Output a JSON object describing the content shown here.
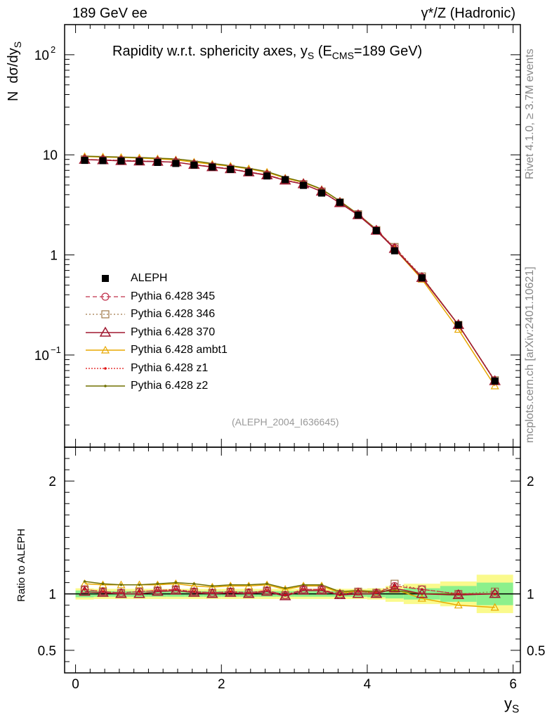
{
  "header": {
    "left": "189 GeV ee",
    "right": "γ*/Z (Hadronic)"
  },
  "title": {
    "prefix": "Rapidity w.r.t. sphericity axes, y",
    "sub1": "S",
    "mid": " (E",
    "sub2": "CMS",
    "suffix": "=189 GeV)"
  },
  "side_labels": {
    "rivet": "Rivet 4.1.0, ≥ 3.7M events",
    "mcplots": "mcplots.cern.ch [arXiv:2401.10621]"
  },
  "analysis_id": "(ALEPH_2004_I636645)",
  "colors": {
    "ALEPH": "#000000",
    "p345": "#c0304a",
    "p346": "#a07848",
    "p370": "#a01830",
    "ambt1": "#e8a800",
    "z1": "#e01010",
    "z2": "#707000",
    "band_inner": "#8cf08c",
    "band_outer": "#fafa8c"
  },
  "chart_data": [
    {
      "type": "line",
      "panel": "main",
      "title": "Rapidity w.r.t. sphericity axes, y_S (E_CMS=189 GeV)",
      "xlabel": "y_S",
      "ylabel": "N dσ/dy_S",
      "yscale": "log",
      "xlim": [
        -0.15,
        6.1
      ],
      "ylim": [
        0.012,
        200
      ],
      "x_ticks": [
        "0",
        "2",
        "4",
        "6"
      ],
      "y_ticks": [
        {
          "value": 100,
          "label": "10",
          "exp": "2"
        },
        {
          "value": 10,
          "label": "10",
          "exp": ""
        },
        {
          "value": 1,
          "label": "1",
          "exp": ""
        },
        {
          "value": 0.1,
          "label": "10",
          "exp": "−1"
        }
      ],
      "x": [
        0.125,
        0.375,
        0.625,
        0.875,
        1.125,
        1.375,
        1.625,
        1.875,
        2.125,
        2.375,
        2.625,
        2.875,
        3.125,
        3.375,
        3.625,
        3.875,
        4.125,
        4.375,
        4.75,
        5.25,
        5.75
      ],
      "series": [
        {
          "name": "ALEPH",
          "key": "ALEPH",
          "values": [
            8.8,
            8.75,
            8.7,
            8.6,
            8.4,
            8.2,
            7.9,
            7.55,
            7.15,
            6.7,
            6.15,
            5.65,
            4.95,
            4.15,
            3.35,
            2.5,
            1.75,
            1.1,
            0.59,
            0.2,
            0.055
          ]
        },
        {
          "name": "Pythia 6.428 345",
          "key": "p345",
          "values": [
            9.0,
            8.9,
            8.8,
            8.7,
            8.6,
            8.4,
            8.0,
            7.6,
            7.25,
            6.75,
            6.3,
            5.6,
            5.1,
            4.3,
            3.3,
            2.55,
            1.77,
            1.18,
            0.6,
            0.2,
            0.055
          ]
        },
        {
          "name": "Pythia 6.428 346",
          "key": "p346",
          "values": [
            9.0,
            8.9,
            8.8,
            8.7,
            8.6,
            8.4,
            8.0,
            7.6,
            7.25,
            6.75,
            6.3,
            5.6,
            5.1,
            4.3,
            3.35,
            2.55,
            1.77,
            1.2,
            0.61,
            0.2,
            0.056
          ]
        },
        {
          "name": "Pythia 6.428 370",
          "key": "p370",
          "values": [
            8.95,
            8.85,
            8.7,
            8.6,
            8.55,
            8.45,
            7.95,
            7.55,
            7.2,
            6.7,
            6.25,
            5.55,
            5.1,
            4.3,
            3.3,
            2.5,
            1.75,
            1.15,
            0.59,
            0.2,
            0.055
          ]
        },
        {
          "name": "Pythia 6.428 ambt1",
          "key": "ambt1",
          "values": [
            9.6,
            9.5,
            9.4,
            9.3,
            9.1,
            8.9,
            8.45,
            8.05,
            7.7,
            7.25,
            6.7,
            5.85,
            5.3,
            4.5,
            3.45,
            2.55,
            1.78,
            1.15,
            0.57,
            0.18,
            0.049
          ]
        },
        {
          "name": "Pythia 6.428 z1",
          "key": "z1",
          "values": [
            9.0,
            8.9,
            8.8,
            8.7,
            8.6,
            8.4,
            8.0,
            7.6,
            7.25,
            6.75,
            6.3,
            5.6,
            5.1,
            4.3,
            3.3,
            2.55,
            1.77,
            1.18,
            0.6,
            0.2,
            0.055
          ]
        },
        {
          "name": "Pythia 6.428 z2",
          "key": "z2",
          "values": [
            9.7,
            9.6,
            9.5,
            9.4,
            9.25,
            9.1,
            8.7,
            8.2,
            7.8,
            7.35,
            6.8,
            5.95,
            5.35,
            4.55,
            3.45,
            2.55,
            1.8,
            1.15,
            0.6,
            0.2,
            0.055
          ]
        }
      ]
    },
    {
      "type": "line",
      "panel": "ratio",
      "xlabel": "y_S",
      "ylabel": "Ratio to ALEPH",
      "xlim": [
        -0.15,
        6.1
      ],
      "ylim": [
        0.3,
        2.3
      ],
      "x_ticks": [
        "0",
        "2",
        "4",
        "6"
      ],
      "y_ticks": [
        "0.5",
        "1",
        "2"
      ],
      "bin_edges": [
        0,
        0.25,
        0.5,
        0.75,
        1.0,
        1.25,
        1.5,
        1.75,
        2.0,
        2.25,
        2.5,
        2.75,
        3.0,
        3.25,
        3.5,
        3.75,
        4.0,
        4.25,
        4.5,
        5.0,
        5.5,
        6.0
      ],
      "band_inner_halfwidth": [
        0.03,
        0.025,
        0.025,
        0.025,
        0.025,
        0.025,
        0.025,
        0.025,
        0.025,
        0.025,
        0.025,
        0.025,
        0.025,
        0.025,
        0.025,
        0.025,
        0.03,
        0.04,
        0.05,
        0.07,
        0.1
      ],
      "band_outer_halfwidth": [
        0.05,
        0.045,
        0.045,
        0.045,
        0.045,
        0.045,
        0.045,
        0.045,
        0.045,
        0.045,
        0.045,
        0.045,
        0.045,
        0.045,
        0.045,
        0.045,
        0.05,
        0.07,
        0.09,
        0.11,
        0.17
      ],
      "x": [
        0.125,
        0.375,
        0.625,
        0.875,
        1.125,
        1.375,
        1.625,
        1.875,
        2.125,
        2.375,
        2.625,
        2.875,
        3.125,
        3.375,
        3.625,
        3.875,
        4.125,
        4.375,
        4.75,
        5.25,
        5.75
      ],
      "series": [
        {
          "name": "Pythia 6.428 345",
          "key": "p345",
          "values": [
            1.04,
            1.02,
            1.01,
            1.02,
            1.03,
            1.04,
            1.02,
            1.01,
            1.02,
            1.01,
            1.03,
            0.99,
            1.04,
            1.04,
            0.99,
            1.02,
            1.01,
            1.07,
            1.04,
            1.0,
            1.0
          ]
        },
        {
          "name": "Pythia 6.428 346",
          "key": "p346",
          "values": [
            1.04,
            1.02,
            1.01,
            1.02,
            1.03,
            1.04,
            1.02,
            1.01,
            1.02,
            1.01,
            1.03,
            0.99,
            1.04,
            1.04,
            1.0,
            1.02,
            1.01,
            1.09,
            1.04,
            1.0,
            1.02
          ]
        },
        {
          "name": "Pythia 6.428 370",
          "key": "p370",
          "values": [
            1.02,
            1.01,
            1.0,
            1.0,
            1.02,
            1.03,
            1.01,
            1.0,
            1.01,
            1.0,
            1.02,
            0.98,
            1.03,
            1.03,
            0.99,
            1.0,
            1.0,
            1.05,
            1.0,
            0.99,
            1.0
          ]
        },
        {
          "name": "Pythia 6.428 ambt1",
          "key": "ambt1",
          "values": [
            1.09,
            1.08,
            1.08,
            1.08,
            1.08,
            1.09,
            1.07,
            1.06,
            1.07,
            1.07,
            1.08,
            1.04,
            1.07,
            1.07,
            1.01,
            1.02,
            1.01,
            1.04,
            0.96,
            0.9,
            0.88
          ]
        },
        {
          "name": "Pythia 6.428 z1",
          "key": "z1",
          "values": [
            1.04,
            1.02,
            1.01,
            1.02,
            1.03,
            1.04,
            1.02,
            1.01,
            1.02,
            1.01,
            1.03,
            0.99,
            1.04,
            1.04,
            0.99,
            1.02,
            1.01,
            1.07,
            1.04,
            1.0,
            1.0
          ]
        },
        {
          "name": "Pythia 6.428 z2",
          "key": "z2",
          "values": [
            1.11,
            1.09,
            1.08,
            1.08,
            1.09,
            1.1,
            1.09,
            1.07,
            1.08,
            1.08,
            1.09,
            1.05,
            1.08,
            1.08,
            1.02,
            1.03,
            1.02,
            1.03,
            1.0,
            1.0,
            1.0
          ]
        }
      ]
    }
  ],
  "legend": [
    {
      "label": "ALEPH",
      "key": "ALEPH",
      "marker": "square-filled",
      "line": "none"
    },
    {
      "label": "Pythia 6.428 345",
      "key": "p345",
      "marker": "circle-open",
      "line": "dashed"
    },
    {
      "label": "Pythia 6.428 346",
      "key": "p346",
      "marker": "square-open",
      "line": "dotted"
    },
    {
      "label": "Pythia 6.428 370",
      "key": "p370",
      "marker": "triangle-open",
      "line": "solid"
    },
    {
      "label": "Pythia 6.428 ambt1",
      "key": "ambt1",
      "marker": "triangle-open-small",
      "line": "solid"
    },
    {
      "label": "Pythia 6.428 z1",
      "key": "z1",
      "marker": "dot",
      "line": "dotted"
    },
    {
      "label": "Pythia 6.428 z2",
      "key": "z2",
      "marker": "dot",
      "line": "solid"
    }
  ]
}
